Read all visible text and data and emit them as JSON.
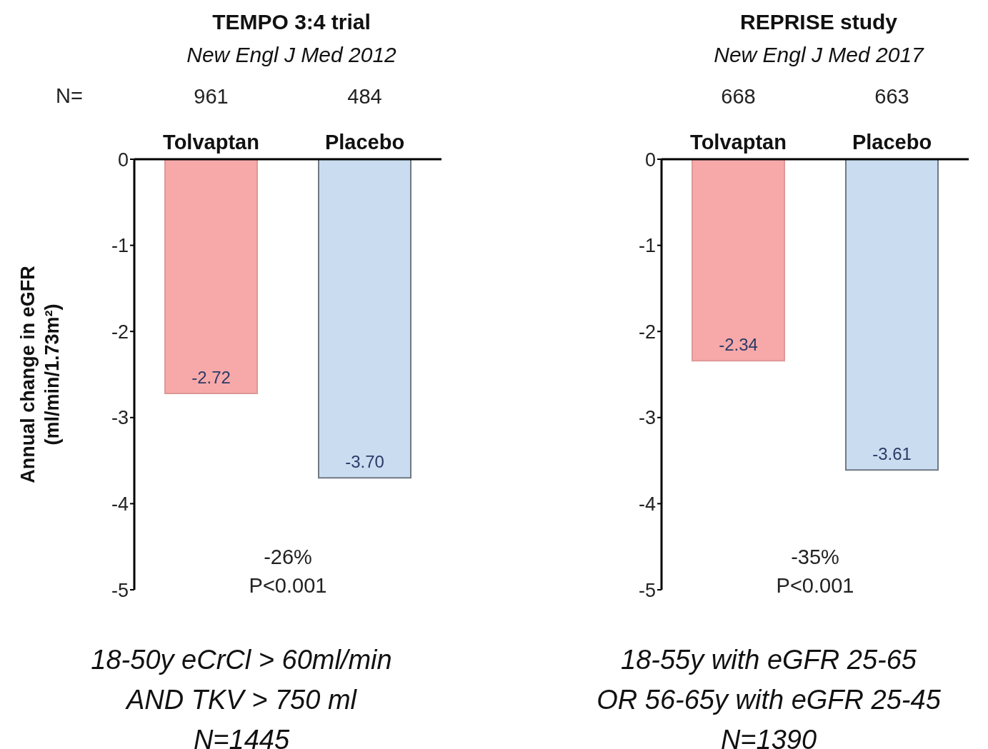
{
  "chart_data": [
    {
      "type": "bar",
      "title": "TEMPO 3:4 trial",
      "subtitle": "New Engl J Med 2012",
      "ylabel": "Annual change in eGFR\n(ml/min/1.73m²)",
      "categories": [
        "Tolvaptan",
        "Placebo"
      ],
      "values": [
        -2.72,
        -3.7
      ],
      "colors": [
        "#f7a9a9",
        "#c9dcf0"
      ],
      "data_labels": true,
      "ylim": [
        -5,
        0
      ],
      "yticks": [
        0,
        -1,
        -2,
        -3,
        -4,
        -5
      ],
      "grid": false,
      "legend": false,
      "value_labels": [
        "-2.72",
        "-3.70"
      ],
      "annotations": [
        "N=",
        "961",
        "484",
        "-26%\nP<0.001",
        "18-50y eCrCl > 60ml/min\nAND TKV > 750 ml\nN=1445"
      ]
    },
    {
      "type": "bar",
      "title": "REPRISE study",
      "subtitle": "New Engl J Med 2017",
      "categories": [
        "Tolvaptan",
        "Placebo"
      ],
      "values": [
        -2.34,
        -3.61
      ],
      "colors": [
        "#f7a9a9",
        "#c9dcf0"
      ],
      "data_labels": true,
      "ylim": [
        -5,
        0
      ],
      "yticks": [
        0,
        -1,
        -2,
        -3,
        -4,
        -5
      ],
      "grid": false,
      "legend": false,
      "value_labels": [
        "-2.34",
        "-3.61"
      ],
      "annotations": [
        "668",
        "663",
        "-35%\nP<0.001",
        "18-55y with eGFR 25-65\nOR 56-65y with eGFR 25-45\nN=1390"
      ]
    }
  ]
}
